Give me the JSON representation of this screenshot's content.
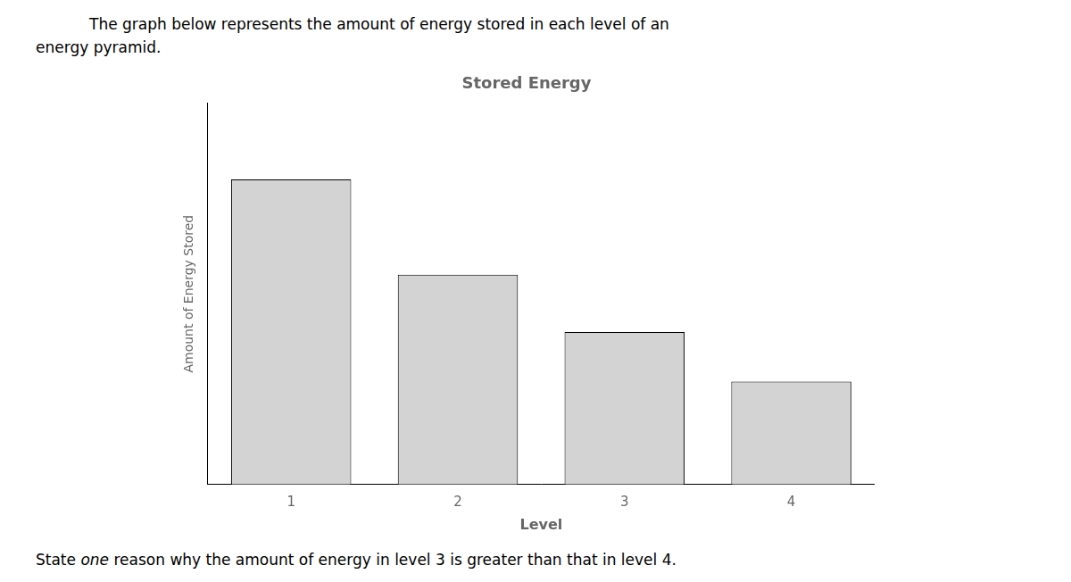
{
  "chart_data": {
    "type": "bar",
    "title": "Stored Energy",
    "xlabel": "Level",
    "ylabel": "Amount of Energy Stored",
    "categories": [
      "1",
      "2",
      "3",
      "4"
    ],
    "values": [
      0.8,
      0.55,
      0.4,
      0.27
    ],
    "color": "#d3d3d3",
    "ylim": [
      0,
      1.0
    ],
    "grid": false,
    "tick_labels": "x",
    "annotations": [
      "The graph below represents the amount of energy stored in each level of an",
      "energy pyramid.",
      "State ",
      "one",
      " reason why the amount of energy in level 3 is greater than that in level 4."
    ]
  }
}
